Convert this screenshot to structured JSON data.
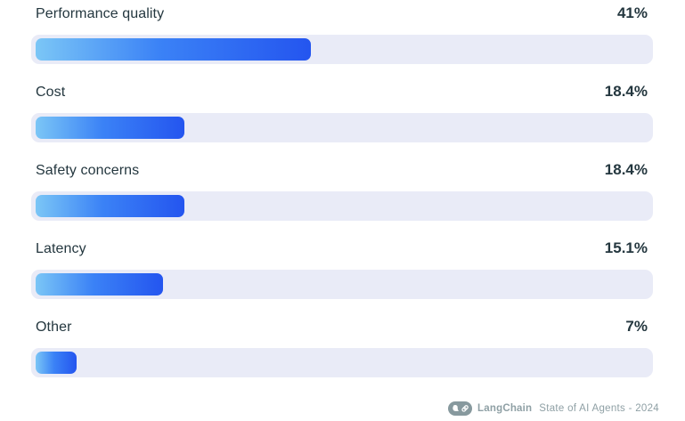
{
  "chart_data": {
    "type": "bar",
    "orientation": "horizontal",
    "title": "",
    "xlabel": "",
    "ylabel": "",
    "xlim": [
      0,
      100
    ],
    "grid": false,
    "legend": "none",
    "categories": [
      "Performance quality",
      "Cost",
      "Safety concerns",
      "Latency",
      "Other"
    ],
    "values": [
      41,
      18.4,
      18.4,
      15.1,
      7
    ],
    "value_labels": [
      "41%",
      "18.4%",
      "18.4%",
      "15.1%",
      "7%"
    ],
    "bar_fractions_pct": [
      44.9,
      24.3,
      24.3,
      20.8,
      6.7
    ],
    "colors": {
      "bar_gradient_start": "#7bc6f6",
      "bar_gradient_end": "#2455ef",
      "track": "#e9ebf7",
      "label_text": "#24373f",
      "footer_text": "#8fa0a5"
    }
  },
  "footer": {
    "brand": "LangChain",
    "caption": "State of AI Agents - 2024",
    "logo_icon": "langchain-parrot-link-logo"
  }
}
